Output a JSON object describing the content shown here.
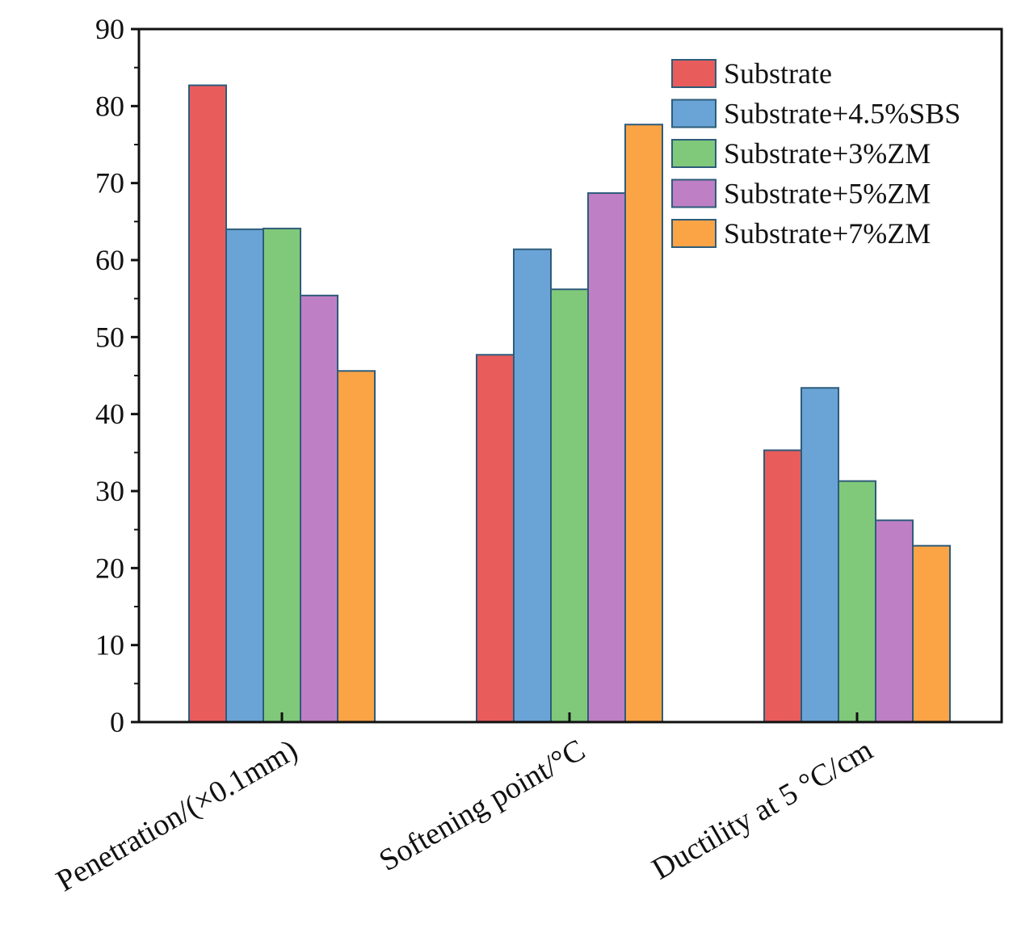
{
  "chart_data": {
    "type": "bar",
    "title": "",
    "xlabel": "",
    "ylabel": "",
    "ylim": [
      0,
      90
    ],
    "yticks": [
      0,
      10,
      20,
      30,
      40,
      50,
      60,
      70,
      80,
      90
    ],
    "categories": [
      "Penetration/(×0.1mm)",
      "Softening point/°C",
      "Ductility at 5 °C/cm"
    ],
    "series": [
      {
        "name": "Substrate",
        "color": "#e85c5c",
        "values": [
          82.7,
          47.7,
          35.3
        ]
      },
      {
        "name": "Substrate+4.5%SBS",
        "color": "#6aa4d6",
        "values": [
          64.0,
          61.4,
          43.4
        ]
      },
      {
        "name": "Substrate+3%ZM",
        "color": "#80c97a",
        "values": [
          64.1,
          56.2,
          31.3
        ]
      },
      {
        "name": "Substrate+5%ZM",
        "color": "#bf7fc4",
        "values": [
          55.4,
          68.7,
          26.2
        ]
      },
      {
        "name": "Substrate+7%ZM",
        "color": "#fba446",
        "values": [
          45.6,
          77.6,
          22.9
        ]
      }
    ],
    "legend_position": "top-right",
    "grid": false
  }
}
